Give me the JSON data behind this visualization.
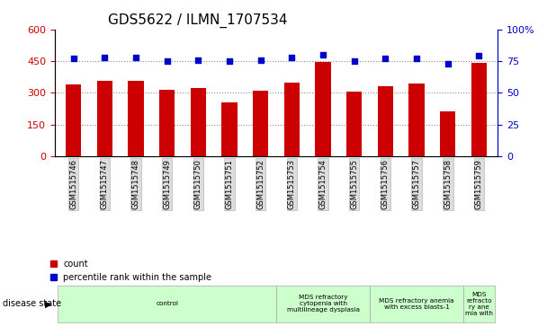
{
  "title": "GDS5622 / ILMN_1707534",
  "samples": [
    "GSM1515746",
    "GSM1515747",
    "GSM1515748",
    "GSM1515749",
    "GSM1515750",
    "GSM1515751",
    "GSM1515752",
    "GSM1515753",
    "GSM1515754",
    "GSM1515755",
    "GSM1515756",
    "GSM1515757",
    "GSM1515758",
    "GSM1515759"
  ],
  "counts": [
    340,
    355,
    355,
    315,
    325,
    255,
    310,
    350,
    445,
    305,
    330,
    345,
    215,
    440
  ],
  "percentiles": [
    77,
    78,
    78,
    75,
    76,
    75,
    76,
    78,
    80,
    75,
    77,
    77,
    73,
    79
  ],
  "ylim_left": [
    0,
    600
  ],
  "ylim_right": [
    0,
    100
  ],
  "yticks_left": [
    0,
    150,
    300,
    450,
    600
  ],
  "ytick_labels_left": [
    "0",
    "150",
    "300",
    "450",
    "600"
  ],
  "yticks_right": [
    0,
    25,
    50,
    75,
    100
  ],
  "ytick_labels_right": [
    "0",
    "25",
    "50",
    "75",
    "100%"
  ],
  "bar_color": "#cc0000",
  "dot_color": "#0000cc",
  "disease_groups": [
    {
      "label": "control",
      "start": 0,
      "end": 7
    },
    {
      "label": "MDS refractory\ncytopenia with\nmultilineage dysplasia",
      "start": 7,
      "end": 10
    },
    {
      "label": "MDS refractory anemia\nwith excess blasts-1",
      "start": 10,
      "end": 13
    },
    {
      "label": "MDS\nrefracto\nry ane\nmia with",
      "start": 13,
      "end": 14
    }
  ],
  "disease_state_label": "disease state",
  "legend_count_label": "count",
  "legend_pct_label": "percentile rank within the sample",
  "dotted_line_color": "#888888",
  "background_color": "#ffffff",
  "sample_bg_color": "#dddddd",
  "group_bg_color": "#ccffcc",
  "group_edge_color": "#aaaaaa",
  "hgrid_values": [
    150,
    300,
    450
  ]
}
